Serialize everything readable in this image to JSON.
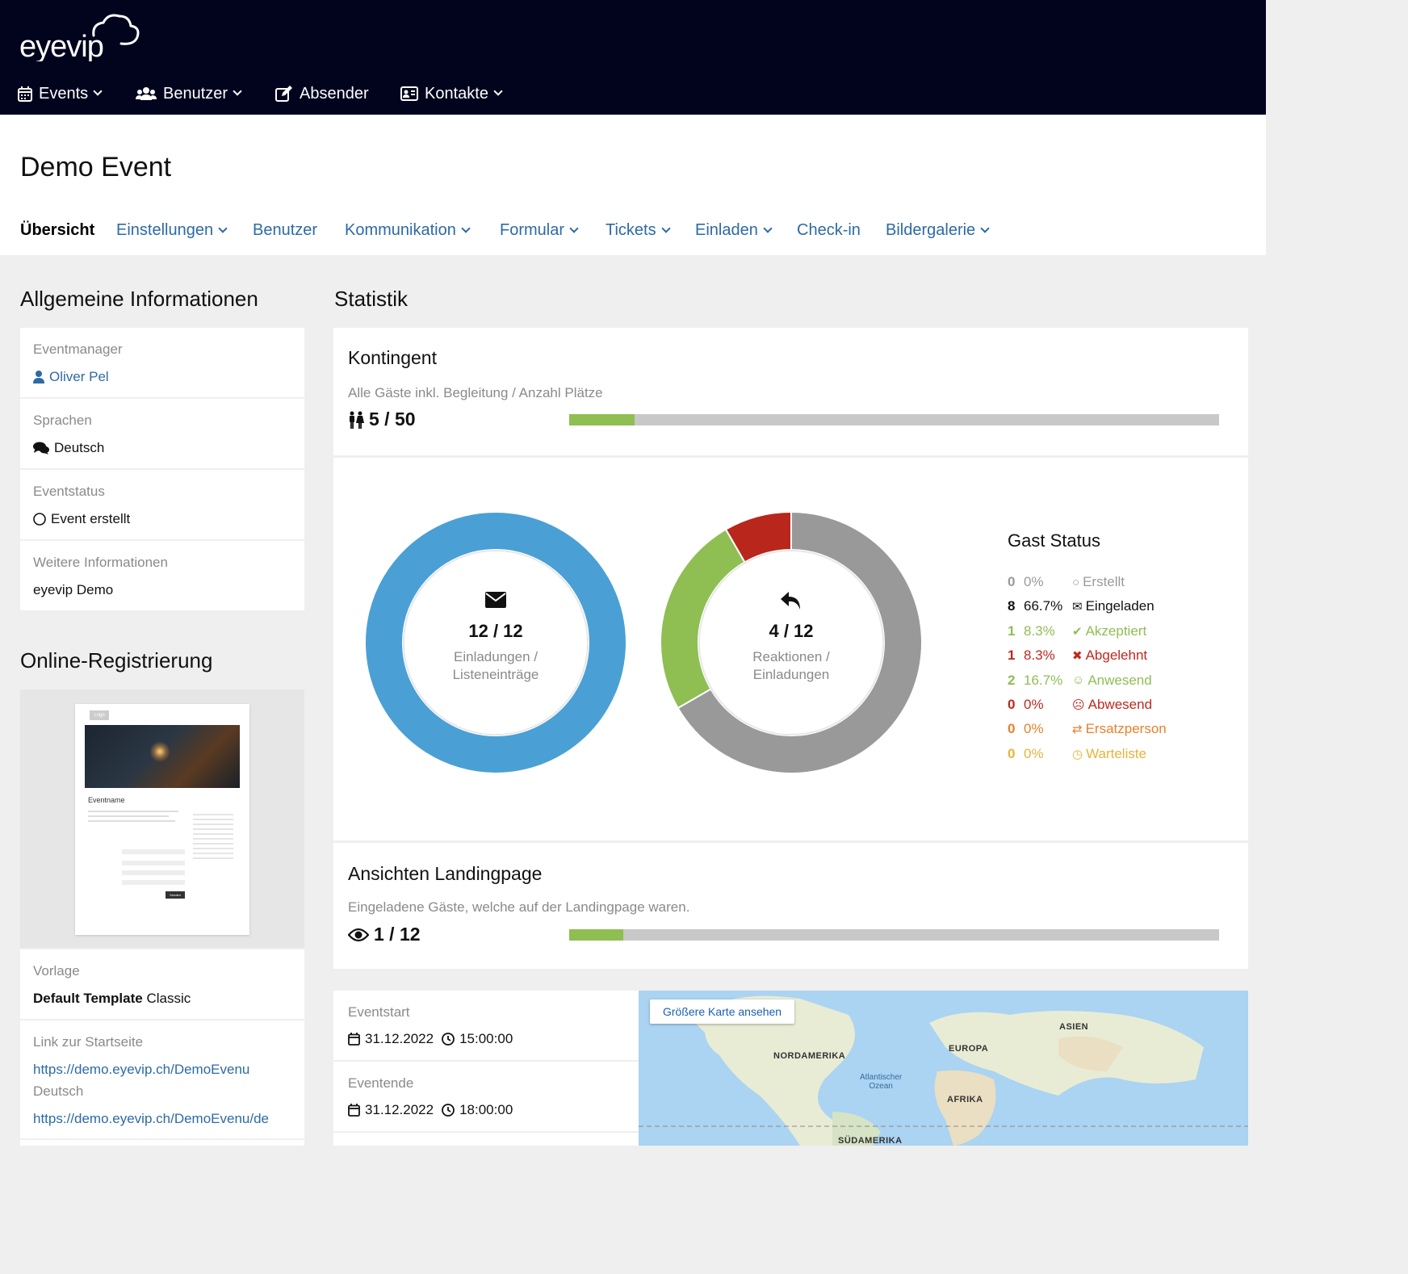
{
  "brand": {
    "logo_text": "eyevip"
  },
  "main_nav": [
    {
      "label": "Events",
      "icon": "calendar-icon",
      "dropdown": true
    },
    {
      "label": "Benutzer",
      "icon": "users-icon",
      "dropdown": true
    },
    {
      "label": "Absender",
      "icon": "edit-icon",
      "dropdown": false
    },
    {
      "label": "Kontakte",
      "icon": "contact-card-icon",
      "dropdown": true
    }
  ],
  "page": {
    "title": "Demo Event"
  },
  "sub_nav": [
    {
      "label": "Übersicht",
      "active": true,
      "dropdown": false
    },
    {
      "label": "Einstellungen",
      "dropdown": true
    },
    {
      "label": "Benutzer",
      "dropdown": false
    },
    {
      "label": "Kommunikation",
      "dropdown": true
    },
    {
      "label": "Formular",
      "dropdown": true
    },
    {
      "label": "Tickets",
      "dropdown": true
    },
    {
      "label": "Einladen",
      "dropdown": true
    },
    {
      "label": "Check-in",
      "dropdown": false
    },
    {
      "label": "Bildergalerie",
      "dropdown": true
    }
  ],
  "general_info": {
    "title": "Allgemeine Informationen",
    "rows": [
      {
        "label": "Eventmanager",
        "value": "Oliver Pel",
        "icon": "user-icon"
      },
      {
        "label": "Sprachen",
        "value": "Deutsch",
        "icon": "comments-icon"
      },
      {
        "label": "Eventstatus",
        "value": "Event erstellt",
        "icon": "circle-icon"
      },
      {
        "label": "Weitere Informationen",
        "value": "eyevip Demo"
      }
    ]
  },
  "online_registration": {
    "title": "Online-Registrierung",
    "preview": {
      "logo": "Logo",
      "event_name": "Eventname",
      "send_button": "Senden"
    },
    "template_label": "Vorlage",
    "template_name_bold": "Default Template",
    "template_name_rest": "Classic",
    "link_label": "Link zur Startseite",
    "link_main": "https://demo.eyevip.ch/DemoEvenu",
    "link_lang": "Deutsch",
    "link_de": "https://demo.eyevip.ch/DemoEvenu/de"
  },
  "statistics": {
    "title": "Statistik",
    "kontingent": {
      "title": "Kontingent",
      "subtitle": "Alle Gäste inkl. Begleitung / Anzahl Plätze",
      "count": "5 / 50",
      "fraction": 0.1
    },
    "donut_invitations": {
      "value": "12 / 12",
      "label_line1": "Einladungen /",
      "label_line2": "Listeneinträge",
      "segments": [
        {
          "fraction": 1.0,
          "color": "#4aa0d5"
        }
      ]
    },
    "donut_reactions": {
      "value": "4 / 12",
      "label_line1": "Reaktionen /",
      "label_line2": "Einladungen",
      "segments": [
        {
          "fraction": 0.6667,
          "color": "#999999"
        },
        {
          "fraction": 0.25,
          "color": "#8fbe52"
        },
        {
          "fraction": 0.0833,
          "color": "#b9261c"
        }
      ]
    },
    "guest_status": {
      "title": "Gast Status",
      "rows": [
        {
          "n": "0",
          "pct": "0%",
          "label": "Erstellt",
          "icon": "circle-icon",
          "color": "#9a9a9a"
        },
        {
          "n": "8",
          "pct": "66.7%",
          "label": "Eingeladen",
          "icon": "envelope-icon",
          "color": "#111111"
        },
        {
          "n": "1",
          "pct": "8.3%",
          "label": "Akzeptiert",
          "icon": "check-icon",
          "color": "#8fbe52"
        },
        {
          "n": "1",
          "pct": "8.3%",
          "label": "Abgelehnt",
          "icon": "times-icon",
          "color": "#c0281d"
        },
        {
          "n": "2",
          "pct": "16.7%",
          "label": "Anwesend",
          "icon": "smile-icon",
          "color": "#8fbe52"
        },
        {
          "n": "0",
          "pct": "0%",
          "label": "Abwesend",
          "icon": "frown-icon",
          "color": "#c0281d"
        },
        {
          "n": "0",
          "pct": "0%",
          "label": "Ersatzperson",
          "icon": "exchange-icon",
          "color": "#e8812b"
        },
        {
          "n": "0",
          "pct": "0%",
          "label": "Warteliste",
          "icon": "clock-icon",
          "color": "#e8b43a"
        }
      ]
    },
    "landing": {
      "title": "Ansichten Landingpage",
      "subtitle": "Eingeladene Gäste, welche auf der Landingpage waren.",
      "count": "1 / 12",
      "fraction": 0.0833
    }
  },
  "event_times": {
    "start_label": "Eventstart",
    "start_date": "31.12.2022",
    "start_time": "15:00:00",
    "end_label": "Eventende",
    "end_date": "31.12.2022",
    "end_time": "18:00:00"
  },
  "map": {
    "button": "Größere Karte ansehen",
    "labels": [
      "NORDAMERIKA",
      "EUROPA",
      "ASIEN",
      "AFRIKA",
      "SÜDAMERIKA"
    ],
    "ocean_line1": "Atlantischer",
    "ocean_line2": "Ozean"
  },
  "colors": {
    "topbar": "#02041e",
    "link": "#2d6aa6",
    "bar_fill": "#8fbe52",
    "bar_track": "#c8c8c8"
  }
}
